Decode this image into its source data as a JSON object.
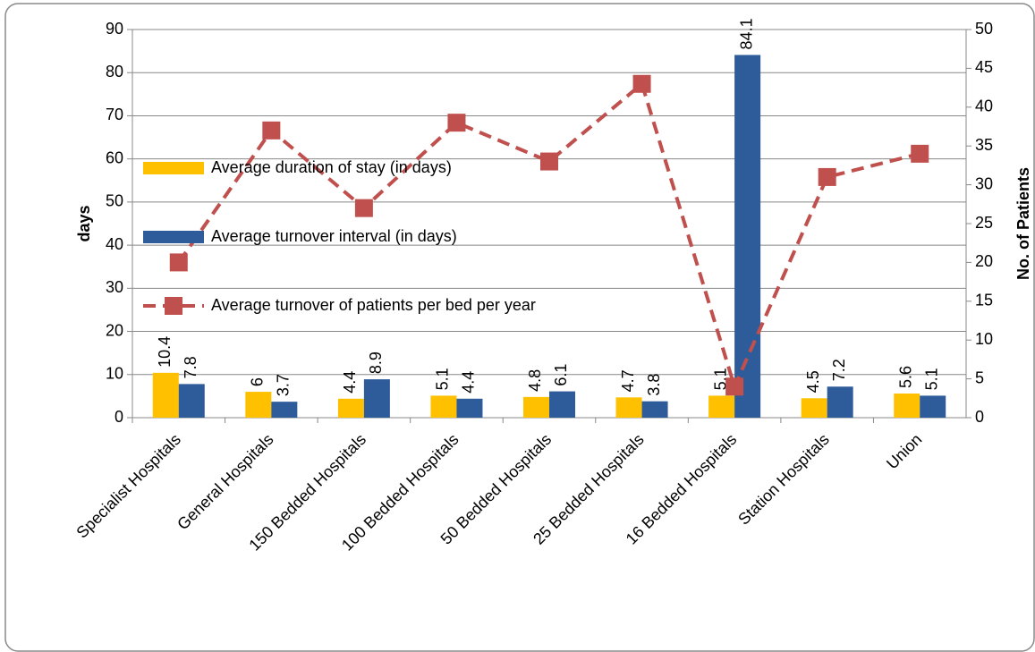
{
  "chart_data": {
    "type": "bar",
    "categories": [
      "Specialist Hospitals",
      "General Hospitals",
      "150 Bedded Hospitals",
      "100 Bedded Hospitals",
      "50 Bedded Hospitals",
      "25 Bedded Hospitals",
      "16 Bedded Hospitals",
      "Station Hospitals",
      "Union"
    ],
    "series": [
      {
        "name": "Average duration of stay (in days)",
        "color": "#ffc000",
        "values": [
          10.4,
          6,
          4.4,
          5.1,
          4.8,
          4.7,
          5.1,
          4.5,
          5.6
        ]
      },
      {
        "name": "Average turnover interval (in days)",
        "color": "#2e5c9a",
        "values": [
          7.8,
          3.7,
          8.9,
          4.4,
          6.1,
          3.8,
          84.1,
          7.2,
          5.1
        ]
      },
      {
        "name": "Average turnover of patients per bed per year",
        "color": "#c0504d",
        "type": "line",
        "dashed": true,
        "axis": "y2",
        "values": [
          20,
          37,
          27,
          38,
          33,
          43,
          4,
          31,
          34
        ]
      }
    ],
    "ylabel": "days",
    "y2label": "No. of Patients",
    "ylim": [
      0,
      90
    ],
    "yticks": [
      0,
      10,
      20,
      30,
      40,
      50,
      60,
      70,
      80,
      90
    ],
    "y2lim": [
      0,
      50
    ],
    "y2ticks": [
      0,
      5,
      10,
      15,
      20,
      25,
      30,
      35,
      40,
      45,
      50
    ],
    "grid": true,
    "legend": "left"
  }
}
